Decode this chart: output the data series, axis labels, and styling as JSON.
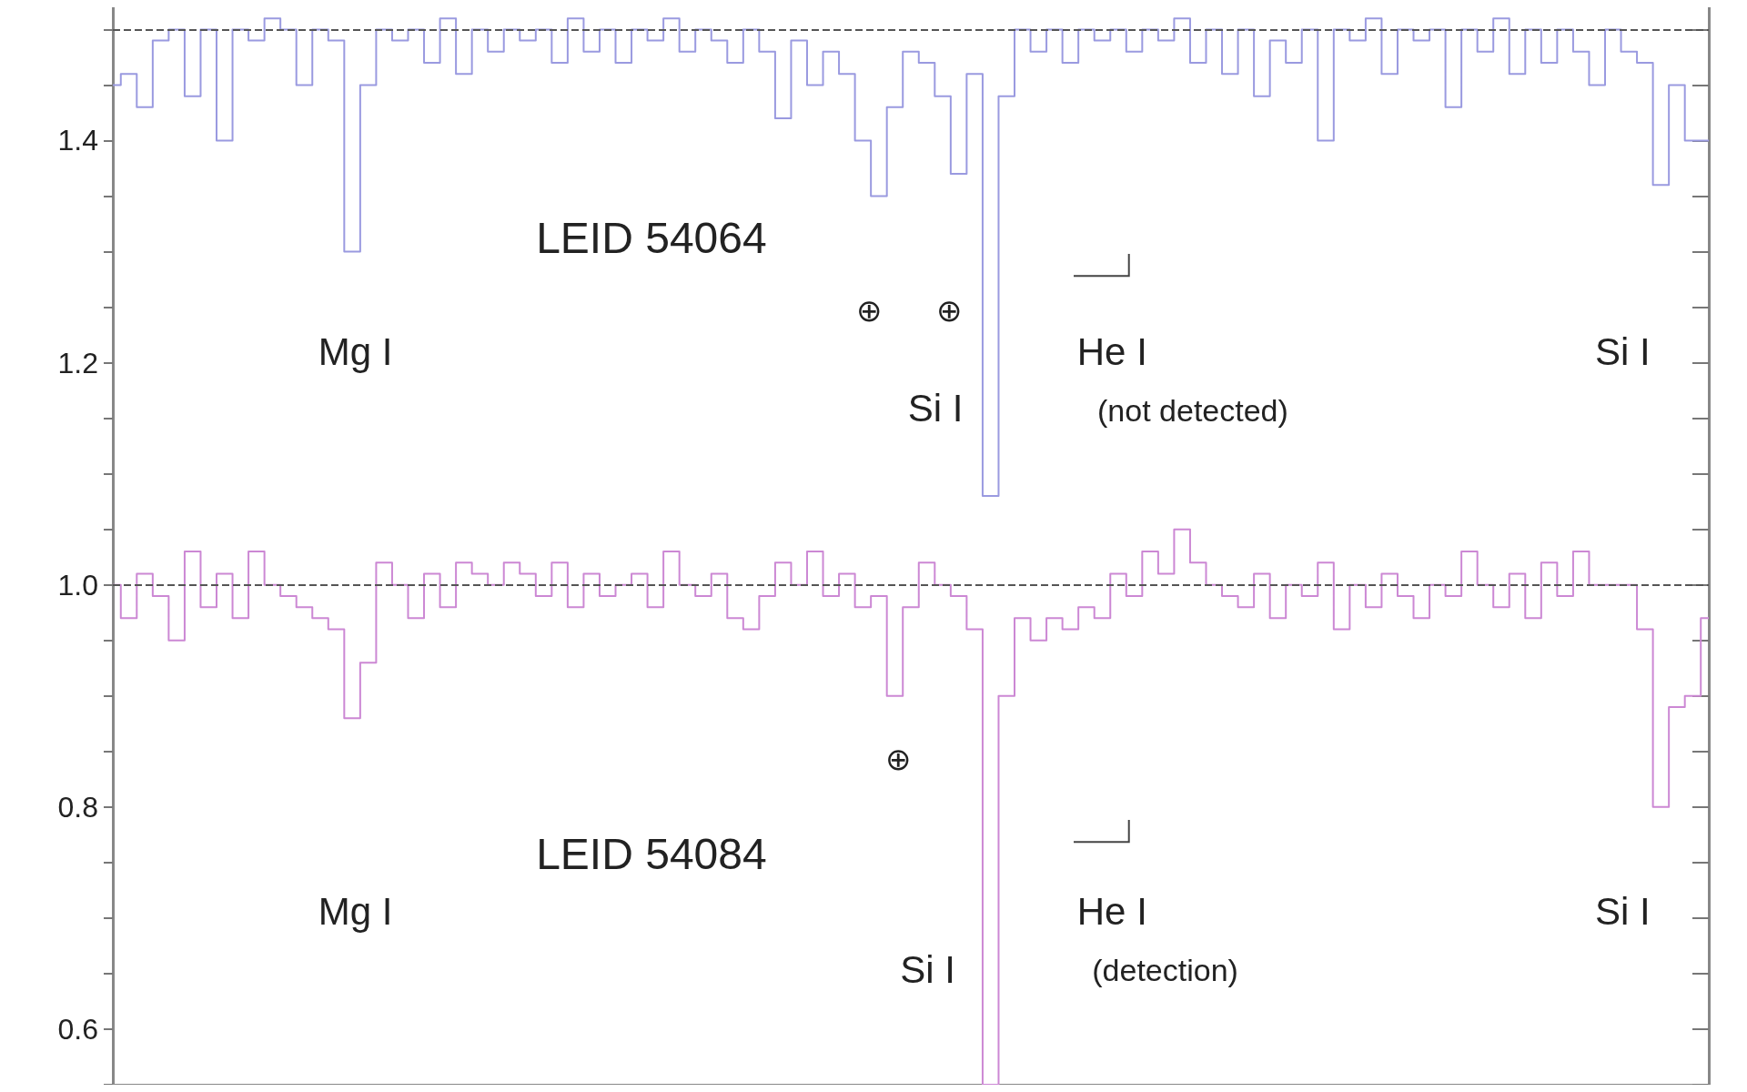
{
  "chart_data": {
    "type": "step",
    "categories": [
      null,
      null,
      null,
      null,
      null,
      null,
      null,
      null,
      null,
      null,
      null,
      null,
      null,
      null,
      null,
      null,
      null,
      null,
      null,
      null,
      null,
      null,
      null,
      null,
      null,
      null,
      null,
      null,
      null,
      null,
      null,
      null,
      null,
      null,
      null,
      null,
      null,
      null,
      null,
      null,
      null,
      null,
      null,
      null,
      null,
      null,
      null,
      null,
      null,
      null,
      null,
      null,
      null,
      null,
      null,
      null,
      null,
      null,
      null,
      null,
      null,
      null,
      null,
      null,
      null,
      null,
      null,
      null,
      null,
      null,
      null,
      null,
      null,
      null,
      null,
      null,
      null,
      null,
      null,
      null,
      null,
      null,
      null,
      null,
      null,
      null,
      null,
      null,
      null,
      null,
      null,
      null,
      null,
      null,
      null,
      null,
      null,
      null,
      null,
      null,
      null
    ],
    "series": [
      {
        "color": "#9a9ae0",
        "values": [
          1.45,
          1.46,
          1.43,
          1.49,
          1.5,
          1.44,
          1.5,
          1.4,
          1.5,
          1.49,
          1.51,
          1.5,
          1.45,
          1.5,
          1.49,
          1.3,
          1.45,
          1.5,
          1.49,
          1.5,
          1.47,
          1.51,
          1.46,
          1.5,
          1.48,
          1.5,
          1.49,
          1.5,
          1.47,
          1.51,
          1.48,
          1.5,
          1.47,
          1.5,
          1.49,
          1.51,
          1.48,
          1.5,
          1.49,
          1.47,
          1.5,
          1.48,
          1.42,
          1.49,
          1.45,
          1.48,
          1.46,
          1.4,
          1.35,
          1.43,
          1.48,
          1.47,
          1.44,
          1.37,
          1.46,
          1.08,
          1.44,
          1.5,
          1.48,
          1.5,
          1.47,
          1.5,
          1.49,
          1.5,
          1.48,
          1.5,
          1.49,
          1.51,
          1.47,
          1.5,
          1.46,
          1.5,
          1.44,
          1.49,
          1.47,
          1.5,
          1.4,
          1.5,
          1.49,
          1.51,
          1.46,
          1.5,
          1.49,
          1.5,
          1.43,
          1.5,
          1.48,
          1.51,
          1.46,
          1.5,
          1.47,
          1.5,
          1.48,
          1.45,
          1.5,
          1.48,
          1.47,
          1.36,
          1.45,
          1.4,
          1.4
        ]
      },
      {
        "color": "#cc88d4",
        "values": [
          1.0,
          0.97,
          1.01,
          0.99,
          0.95,
          1.03,
          0.98,
          1.01,
          0.97,
          1.03,
          1.0,
          0.99,
          0.98,
          0.97,
          0.96,
          0.88,
          0.93,
          1.02,
          1.0,
          0.97,
          1.01,
          0.98,
          1.02,
          1.01,
          1.0,
          1.02,
          1.01,
          0.99,
          1.02,
          0.98,
          1.01,
          0.99,
          1.0,
          1.01,
          0.98,
          1.03,
          1.0,
          0.99,
          1.01,
          0.97,
          0.96,
          0.99,
          1.02,
          1.0,
          1.03,
          0.99,
          1.01,
          0.98,
          0.99,
          0.9,
          0.98,
          1.02,
          1.0,
          0.99,
          0.96,
          0.55,
          0.9,
          0.97,
          0.95,
          0.97,
          0.96,
          0.98,
          0.97,
          1.01,
          0.99,
          1.03,
          1.01,
          1.05,
          1.02,
          1.0,
          0.99,
          0.98,
          1.01,
          0.97,
          1.0,
          0.99,
          1.02,
          0.96,
          1.0,
          0.98,
          1.01,
          0.99,
          0.97,
          1.0,
          0.99,
          1.03,
          1.0,
          0.98,
          1.01,
          0.97,
          1.02,
          0.99,
          1.03,
          1.0,
          1.0,
          1.0,
          0.96,
          0.8,
          0.89,
          0.9,
          0.97
        ]
      }
    ],
    "ylim": [
      0.55,
      1.52
    ],
    "yticks": [
      {
        "value": 0.55,
        "label": null
      },
      0.6,
      {
        "value": 0.65,
        "label": null
      },
      {
        "value": 0.7,
        "label": null
      },
      {
        "value": 0.75,
        "label": null
      },
      0.8,
      {
        "value": 0.85,
        "label": null
      },
      {
        "value": 0.9,
        "label": null
      },
      {
        "value": 0.95,
        "label": null
      },
      {
        "value": 1,
        "label": "1.0"
      },
      {
        "value": 1.05,
        "label": null
      },
      {
        "value": 1.1,
        "label": null
      },
      {
        "value": 1.15,
        "label": null
      },
      1.2,
      {
        "value": 1.25,
        "label": null
      },
      {
        "value": 1.3,
        "label": null
      },
      {
        "value": 1.35,
        "label": null
      },
      1.4,
      {
        "value": 1.45,
        "label": null
      },
      {
        "value": 1.5,
        "label": null
      }
    ],
    "tick_labels": "y",
    "ref_lines": [
      {
        "axis": "y",
        "value": 1.5,
        "color": "#555555",
        "line_style": "dashed"
      },
      {
        "axis": "y",
        "value": 1.0,
        "color": "#555555",
        "line_style": "dashed"
      }
    ],
    "annotations": [
      "LEID 54064",
      "Mg I",
      "⊕",
      "⊕",
      "Si I",
      "He I",
      "(not detected)",
      "Si I",
      "LEID 54084",
      "Mg I",
      "⊕",
      "Si I",
      "He I",
      "(detection)",
      "Si I"
    ]
  }
}
